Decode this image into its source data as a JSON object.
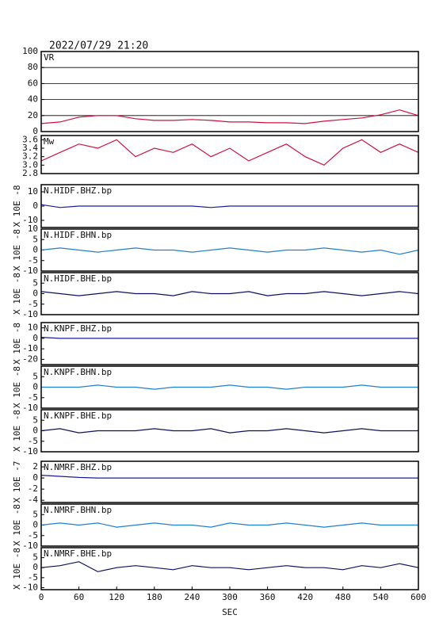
{
  "chart_data": [
    {
      "type": "line",
      "title": "2022/07/29 21:20",
      "grid": true,
      "xlim": [
        0,
        600
      ],
      "ylim": [
        0,
        100
      ],
      "yticks": [
        0,
        20,
        40,
        60,
        80,
        100
      ],
      "x": [
        0,
        30,
        60,
        90,
        120,
        150,
        180,
        210,
        240,
        270,
        300,
        330,
        360,
        390,
        420,
        450,
        480,
        510,
        540,
        570,
        600
      ],
      "series": [
        {
          "name": "VR",
          "color": "#d01040",
          "values": [
            10,
            12,
            18,
            20,
            20,
            16,
            14,
            14,
            15,
            14,
            12,
            12,
            11,
            11,
            10,
            13,
            15,
            17,
            21,
            27,
            20
          ]
        }
      ]
    },
    {
      "type": "line",
      "xlim": [
        0,
        600
      ],
      "ylim": [
        2.8,
        3.7
      ],
      "yticks": [
        2.8,
        {
          "value": 3,
          "label": "3.0"
        },
        3.2,
        3.4,
        3.6
      ],
      "x": [
        0,
        30,
        60,
        90,
        120,
        150,
        180,
        210,
        240,
        270,
        300,
        330,
        360,
        390,
        420,
        450,
        480,
        510,
        540,
        570,
        600
      ],
      "series": [
        {
          "name": "Mw",
          "color": "#d01040",
          "values": [
            3.1,
            3.3,
            3.5,
            3.4,
            3.6,
            3.2,
            3.4,
            3.3,
            3.5,
            3.2,
            3.4,
            3.1,
            3.3,
            3.5,
            3.2,
            3.0,
            3.4,
            3.6,
            3.3,
            3.5,
            3.3
          ]
        }
      ]
    },
    {
      "type": "line",
      "ylabel": "X 10E -8",
      "xlim": [
        0,
        600
      ],
      "ylim": [
        -15,
        15
      ],
      "yticks": [
        -10,
        0,
        10
      ],
      "x": [
        0,
        30,
        60,
        90,
        120,
        150,
        180,
        210,
        240,
        270,
        300,
        330,
        360,
        390,
        420,
        450,
        480,
        510,
        540,
        570,
        600
      ],
      "series": [
        {
          "name": "N.HIDF.BHZ.bp",
          "color": "#1a1aa0",
          "values": [
            1,
            -1,
            0,
            0,
            0,
            0,
            0,
            0,
            0,
            -1,
            0,
            0,
            0,
            0,
            0,
            0,
            0,
            0,
            0,
            0,
            0
          ]
        }
      ]
    },
    {
      "type": "line",
      "ylabel": "X 10E -8",
      "xlim": [
        0,
        600
      ],
      "ylim": [
        -10,
        10
      ],
      "yticks": [
        -10,
        -5,
        0,
        5,
        10
      ],
      "x": [
        0,
        30,
        60,
        90,
        120,
        150,
        180,
        210,
        240,
        270,
        300,
        330,
        360,
        390,
        420,
        450,
        480,
        510,
        540,
        570,
        600
      ],
      "series": [
        {
          "name": "N.HIDF.BHN.bp",
          "color": "#2080d0",
          "values": [
            0,
            1,
            0,
            -1,
            0,
            1,
            0,
            0,
            -1,
            0,
            1,
            0,
            -1,
            0,
            0,
            1,
            0,
            -1,
            0,
            -2,
            0
          ]
        }
      ]
    },
    {
      "type": "line",
      "ylabel": "X 10E -8",
      "xlim": [
        0,
        600
      ],
      "ylim": [
        -10,
        10
      ],
      "yticks": [
        -10,
        -5,
        0,
        5
      ],
      "x": [
        0,
        30,
        60,
        90,
        120,
        150,
        180,
        210,
        240,
        270,
        300,
        330,
        360,
        390,
        420,
        450,
        480,
        510,
        540,
        570,
        600
      ],
      "series": [
        {
          "name": "N.HIDF.BHE.bp",
          "color": "#101060",
          "values": [
            1,
            0,
            -1,
            0,
            1,
            0,
            0,
            -1,
            1,
            0,
            0,
            1,
            -1,
            0,
            0,
            1,
            0,
            -1,
            0,
            1,
            0
          ]
        }
      ]
    },
    {
      "type": "line",
      "ylabel": "X 10E -8",
      "xlim": [
        0,
        600
      ],
      "ylim": [
        -25,
        15
      ],
      "yticks": [
        -20,
        -10,
        0,
        10
      ],
      "x": [
        0,
        30,
        60,
        90,
        120,
        150,
        180,
        210,
        240,
        270,
        300,
        330,
        360,
        390,
        420,
        450,
        480,
        510,
        540,
        570,
        600
      ],
      "series": [
        {
          "name": "N.KNPF.BHZ.bp",
          "color": "#1a1aa0",
          "values": [
            1,
            0,
            0,
            0,
            0,
            0,
            0,
            0,
            0,
            0,
            0,
            0,
            0,
            0,
            0,
            0,
            0,
            0,
            0,
            0,
            0
          ]
        }
      ]
    },
    {
      "type": "line",
      "ylabel": "X 10E -8",
      "xlim": [
        0,
        600
      ],
      "ylim": [
        -10,
        10
      ],
      "yticks": [
        -10,
        -5,
        0,
        5
      ],
      "x": [
        0,
        30,
        60,
        90,
        120,
        150,
        180,
        210,
        240,
        270,
        300,
        330,
        360,
        390,
        420,
        450,
        480,
        510,
        540,
        570,
        600
      ],
      "series": [
        {
          "name": "N.KNPF.BHN.bp",
          "color": "#2080d0",
          "values": [
            0,
            0,
            0,
            1,
            0,
            0,
            -1,
            0,
            0,
            0,
            1,
            0,
            0,
            -1,
            0,
            0,
            0,
            1,
            0,
            0,
            0
          ]
        }
      ]
    },
    {
      "type": "line",
      "ylabel": "X 10E -8",
      "xlim": [
        0,
        600
      ],
      "ylim": [
        -10,
        10
      ],
      "yticks": [
        -10,
        -5,
        0,
        5
      ],
      "x": [
        0,
        30,
        60,
        90,
        120,
        150,
        180,
        210,
        240,
        270,
        300,
        330,
        360,
        390,
        420,
        450,
        480,
        510,
        540,
        570,
        600
      ],
      "series": [
        {
          "name": "N.KNPF.BHE.bp",
          "color": "#101060",
          "values": [
            0,
            1,
            -1,
            0,
            0,
            0,
            1,
            0,
            0,
            1,
            -1,
            0,
            0,
            1,
            0,
            -1,
            0,
            1,
            0,
            0,
            0
          ]
        }
      ]
    },
    {
      "type": "line",
      "ylabel": "X 10E -7",
      "xlim": [
        0,
        600
      ],
      "ylim": [
        -4.4,
        3
      ],
      "yticks": [
        -4,
        -2,
        0,
        2
      ],
      "x": [
        0,
        30,
        60,
        90,
        120,
        150,
        180,
        210,
        240,
        270,
        300,
        330,
        360,
        390,
        420,
        450,
        480,
        510,
        540,
        570,
        600
      ],
      "series": [
        {
          "name": "N.NMRF.BHZ.bp",
          "color": "#1a1aa0",
          "values": [
            0.5,
            0.3,
            0.1,
            0,
            0,
            0,
            0,
            0,
            0,
            0,
            0,
            0,
            0,
            0,
            0,
            0,
            0,
            0,
            0,
            0,
            0
          ]
        }
      ]
    },
    {
      "type": "line",
      "ylabel": "X 10E -8",
      "xlim": [
        0,
        600
      ],
      "ylim": [
        -10,
        10
      ],
      "yticks": [
        -10,
        -5,
        0,
        5
      ],
      "x": [
        0,
        30,
        60,
        90,
        120,
        150,
        180,
        210,
        240,
        270,
        300,
        330,
        360,
        390,
        420,
        450,
        480,
        510,
        540,
        570,
        600
      ],
      "series": [
        {
          "name": "N.NMRF.BHN.bp",
          "color": "#2080d0",
          "values": [
            0,
            1,
            0,
            1,
            -1,
            0,
            1,
            0,
            0,
            -1,
            1,
            0,
            0,
            1,
            0,
            -1,
            0,
            1,
            0,
            0,
            0
          ]
        }
      ]
    },
    {
      "type": "line",
      "ylabel": "X 10E -8",
      "xlabel": "SEC",
      "xlim": [
        0,
        600
      ],
      "ylim": [
        -11,
        10
      ],
      "yticks": [
        -10,
        -5,
        0,
        5
      ],
      "xticks": [
        0,
        60,
        120,
        180,
        240,
        300,
        360,
        420,
        480,
        540,
        600
      ],
      "x": [
        0,
        30,
        60,
        90,
        120,
        150,
        180,
        210,
        240,
        270,
        300,
        330,
        360,
        390,
        420,
        450,
        480,
        510,
        540,
        570,
        600
      ],
      "series": [
        {
          "name": "N.NMRF.BHE.bp",
          "color": "#101060",
          "values": [
            0,
            1,
            3,
            -2,
            0,
            1,
            0,
            -1,
            1,
            0,
            0,
            -1,
            0,
            1,
            0,
            0,
            -1,
            1,
            0,
            2,
            0
          ]
        }
      ]
    }
  ]
}
